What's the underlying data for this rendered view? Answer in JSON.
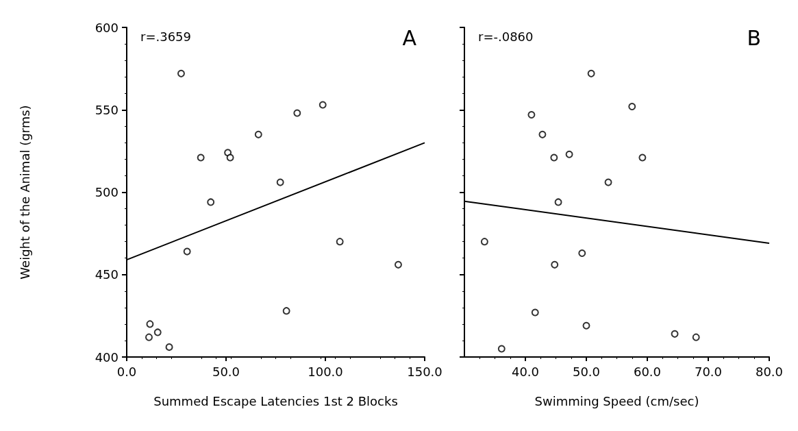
{
  "chart_data": [
    {
      "type": "scatter",
      "ylabel": "Weight of the Animal (grms)",
      "xlabel": "Summed Escape Latencies 1st 2 Blocks",
      "annotations": [
        "r=.3659",
        "A"
      ],
      "xlim": [
        0,
        150
      ],
      "xticks": [
        {
          "value": 0,
          "label": "0.0"
        },
        {
          "value": 50,
          "label": "50.0"
        },
        {
          "value": 100,
          "label": "100.0"
        },
        {
          "value": 150,
          "label": "150.0"
        }
      ],
      "ylim": [
        400,
        600
      ],
      "yticks": [
        400,
        450,
        500,
        550,
        600
      ],
      "grid": false,
      "marker": "circle",
      "series": [
        {
          "color": "#000000",
          "x": [
            27.4,
            98.7,
            85.8,
            66.3,
            37.3,
            50.9,
            52.1,
            77.3,
            42.3,
            30.4,
            107.3,
            136.7,
            80.4,
            11.7,
            11.2,
            15.6,
            21.4
          ],
          "values": [
            572,
            553,
            548,
            535,
            521,
            524,
            521,
            506,
            494,
            464,
            470,
            456,
            428,
            420,
            412,
            415,
            406
          ]
        },
        {
          "type": "line",
          "color": "#000000",
          "marker": "none",
          "line_style": "solid",
          "x": [
            0,
            150
          ],
          "values": [
            459,
            530
          ]
        }
      ]
    },
    {
      "type": "scatter",
      "xlabel": "Swimming Speed (cm/sec)",
      "annotations": [
        "r=-.0860",
        "B"
      ],
      "xlim": [
        30,
        80
      ],
      "xticks": [
        {
          "value": 40,
          "label": "40.0"
        },
        {
          "value": 50,
          "label": "50.0"
        },
        {
          "value": 60,
          "label": "60.0"
        },
        {
          "value": 70,
          "label": "70.0"
        },
        {
          "value": 80,
          "label": "80.0"
        }
      ],
      "ylim": [
        400,
        600
      ],
      "yticks": [
        {
          "value": 400,
          "label": null
        },
        {
          "value": 450,
          "label": null
        },
        {
          "value": 500,
          "label": null
        },
        {
          "value": 550,
          "label": null
        },
        {
          "value": 600,
          "label": null
        }
      ],
      "tick_labels": "x",
      "grid": false,
      "marker": "circle",
      "series": [
        {
          "color": "#000000",
          "x": [
            50.8,
            57.5,
            41.0,
            42.8,
            44.7,
            47.2,
            59.2,
            53.6,
            45.4,
            33.3,
            49.3,
            44.8,
            41.6,
            50.0,
            64.5,
            68.0,
            36.1
          ],
          "values": [
            572,
            552,
            547,
            535,
            521,
            523,
            521,
            506,
            494,
            470,
            463,
            456,
            427,
            419,
            414,
            412,
            405
          ]
        },
        {
          "type": "line",
          "color": "#000000",
          "marker": "none",
          "line_style": "solid",
          "x": [
            30,
            80
          ],
          "values": [
            494.5,
            469
          ]
        }
      ]
    }
  ]
}
